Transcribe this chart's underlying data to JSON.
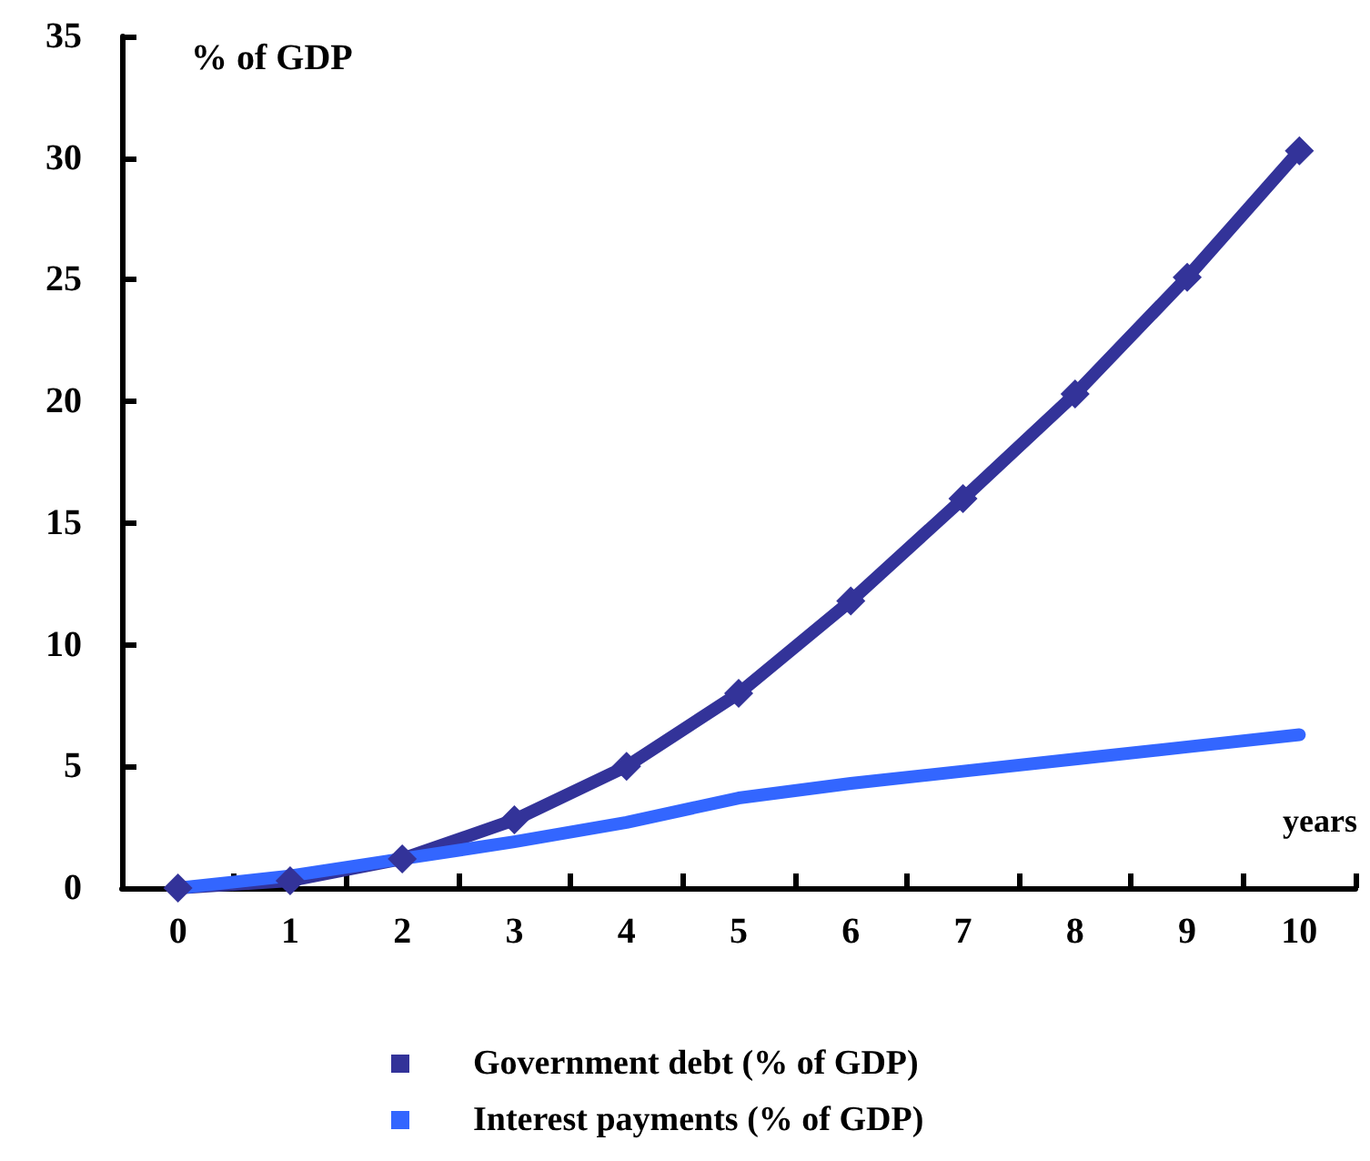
{
  "chart_data": {
    "type": "line",
    "ylabel": "% of GDP",
    "xlabel": "years",
    "categories": [
      "0",
      "1",
      "2",
      "3",
      "4",
      "5",
      "6",
      "7",
      "8",
      "9",
      "10"
    ],
    "series": [
      {
        "name": "Government debt (% of GDP)",
        "color": "#333399",
        "marker": "diamond",
        "values": [
          0,
          0.3,
          1.2,
          2.8,
          5.0,
          8.0,
          11.8,
          16.0,
          20.3,
          25.1,
          30.3
        ]
      },
      {
        "name": "Interest payments (% of GDP)",
        "color": "#3366ff",
        "marker": "none",
        "values": [
          0,
          0.5,
          1.2,
          1.9,
          2.7,
          3.7,
          4.3,
          4.8,
          5.3,
          5.8,
          6.3
        ]
      }
    ],
    "ylim": [
      0,
      35
    ],
    "yticks": [
      0,
      5,
      10,
      15,
      20,
      25,
      30,
      35
    ],
    "grid": false,
    "legend": "bottom",
    "line_style": "solid"
  }
}
